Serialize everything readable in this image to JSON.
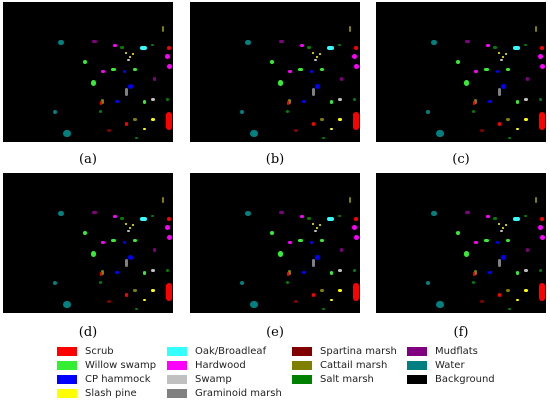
{
  "panels": [
    {
      "id": "a",
      "label": "(a)"
    },
    {
      "id": "b",
      "label": "(b)"
    },
    {
      "id": "c",
      "label": "(c)"
    },
    {
      "id": "d",
      "label": "(d)"
    },
    {
      "id": "e",
      "label": "(e)"
    },
    {
      "id": "f",
      "label": "(f)"
    }
  ],
  "legend": [
    {
      "label": "Scrub",
      "color": "#ff0000"
    },
    {
      "label": "Willow swamp",
      "color": "#33ee33"
    },
    {
      "label": "CP hammock",
      "color": "#0000ff"
    },
    {
      "label": "Slash pine",
      "color": "#ffff00"
    },
    {
      "label": "Oak/Broadleaf",
      "color": "#33ffff"
    },
    {
      "label": "Hardwood",
      "color": "#ff00ff"
    },
    {
      "label": "Swamp",
      "color": "#c0c0c0"
    },
    {
      "label": "Graminoid marsh",
      "color": "#808080"
    },
    {
      "label": "Spartina marsh",
      "color": "#800000"
    },
    {
      "label": "Cattail marsh",
      "color": "#808000"
    },
    {
      "label": "Salt marsh",
      "color": "#008000"
    },
    {
      "label": "Mudflats",
      "color": "#800080"
    },
    {
      "label": "Water",
      "color": "#008080"
    },
    {
      "label": "Background",
      "color": "#000000"
    }
  ]
}
